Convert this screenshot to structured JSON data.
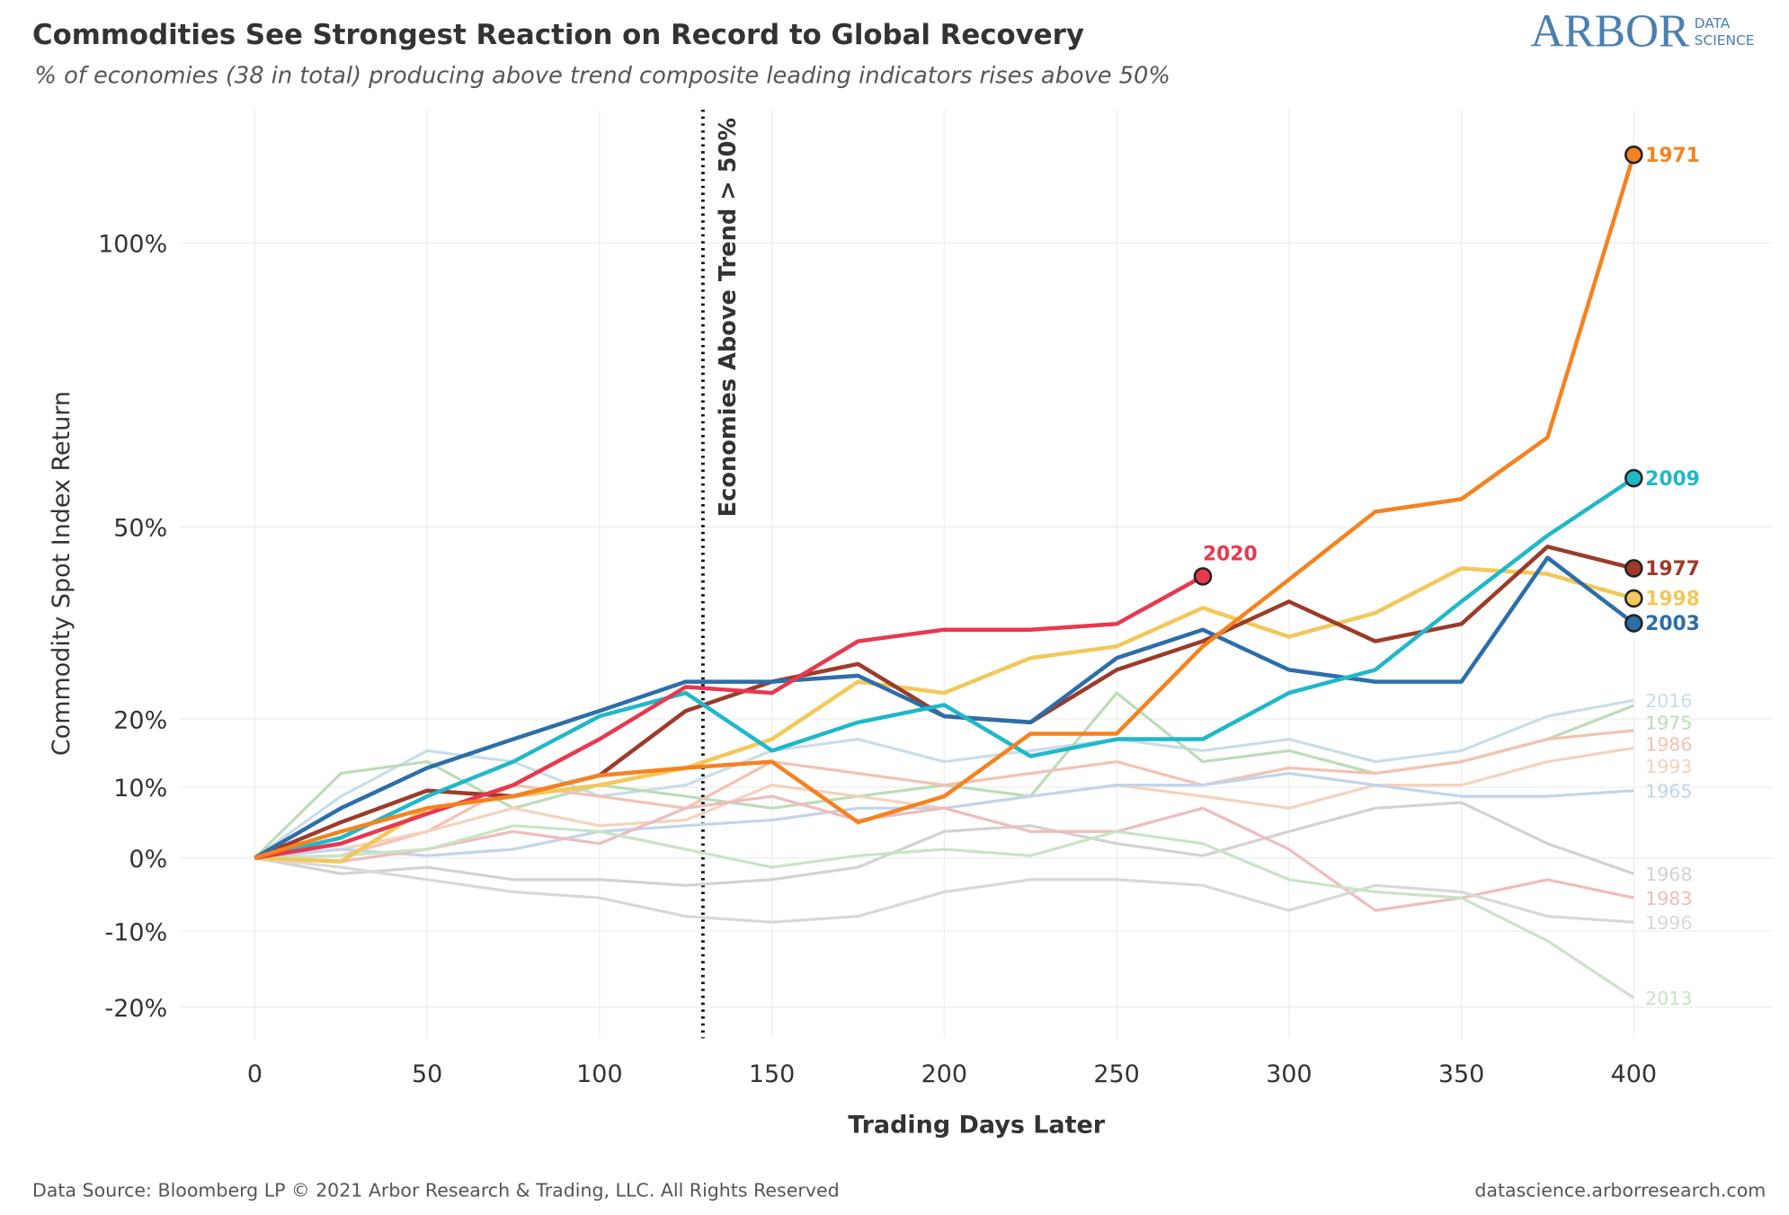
{
  "chart_data": {
    "type": "line",
    "title": "Commodities See Strongest Reaction on Record to Global Recovery",
    "subtitle": "% of economies (38 in total) producing above trend composite leading indicators rises above 50%",
    "logo": {
      "name": "ARBOR",
      "tag": [
        "DATA",
        "SCIENCE"
      ]
    },
    "x_label": "Trading Days Later",
    "y_label": "Commodity Spot Index Return",
    "source": "Data Source: Bloomberg LP © 2021 Arbor Research & Trading, LLC. All Rights Reserved",
    "website": "datascience.arborresearch.com",
    "annotations": [
      {
        "x": 130,
        "label": "Economies Above Trend > 50%"
      }
    ],
    "x": [
      0,
      25,
      50,
      75,
      100,
      125,
      150,
      175,
      200,
      225,
      250,
      275,
      300,
      325,
      350,
      375,
      400
    ],
    "xlim": [
      -22,
      440
    ],
    "xticks": [
      0,
      50,
      100,
      150,
      200,
      250,
      300,
      350,
      400
    ],
    "ylim": [
      -24,
      126
    ],
    "yticks": [
      {
        "value": -20,
        "label": "-20%"
      },
      {
        "value": -10,
        "label": "-10%"
      },
      {
        "value": 0,
        "label": "0%"
      },
      {
        "value": 10,
        "label": "10%"
      },
      {
        "value": 20,
        "label": "20%"
      },
      {
        "value": 50,
        "label": "50%"
      },
      {
        "value": 100,
        "label": "100%"
      }
    ],
    "grid": true,
    "series": [
      {
        "name": "2016",
        "color": "#c9dde8",
        "highlight": false,
        "values": [
          0,
          8.7,
          15.3,
          13.7,
          8.7,
          10.3,
          15.3,
          17,
          13.7,
          15.3,
          17,
          15.3,
          17,
          13.7,
          15.3,
          20.4,
          22.8
        ]
      },
      {
        "name": "1975",
        "color": "#bcdcb7",
        "highlight": false,
        "values": [
          0,
          12,
          13.7,
          7,
          10.3,
          8.7,
          7,
          8.7,
          10.3,
          8.7,
          23.9,
          13.7,
          15.3,
          12,
          13.7,
          17,
          22
        ]
      },
      {
        "name": "1986",
        "color": "#f3c2b1",
        "highlight": false,
        "values": [
          0,
          0.3,
          3.7,
          10.3,
          8.7,
          7,
          13.7,
          12,
          10.3,
          12,
          13.7,
          10.3,
          12.8,
          12,
          13.7,
          17,
          18.3
        ]
      },
      {
        "name": "1993",
        "color": "#f5d2bd",
        "highlight": false,
        "values": [
          0,
          1.2,
          3.7,
          7,
          4.5,
          5.3,
          10.3,
          8.7,
          7,
          8.7,
          10.3,
          8.7,
          7,
          10.3,
          10.3,
          13.7,
          15.7
        ]
      },
      {
        "name": "1965",
        "color": "#c3d4ea",
        "highlight": false,
        "values": [
          0,
          1.2,
          0.3,
          1.2,
          3.7,
          4.5,
          5.3,
          7,
          7,
          8.7,
          10.3,
          10.3,
          12,
          10.3,
          8.7,
          8.7,
          9.5
        ]
      },
      {
        "name": "1968",
        "color": "#d2d2d2",
        "highlight": false,
        "values": [
          0,
          -2.2,
          -1.3,
          -3,
          -3,
          -3.8,
          -3,
          -1.3,
          3.7,
          4.5,
          2,
          0.3,
          3.7,
          7,
          7.8,
          2,
          -2.2
        ]
      },
      {
        "name": "1983",
        "color": "#efbcbc",
        "highlight": false,
        "values": [
          0,
          -0.5,
          1.2,
          3.7,
          2,
          7,
          8.7,
          5.3,
          7,
          3.7,
          3.7,
          7,
          1.2,
          -7.2,
          -5.5,
          -3,
          -5.5
        ]
      },
      {
        "name": "1996",
        "color": "#d8d8d8",
        "highlight": false,
        "values": [
          0,
          -1.3,
          -3,
          -4.7,
          -5.5,
          -8,
          -8.8,
          -8,
          -4.7,
          -3,
          -3,
          -3.8,
          -7.2,
          -3.8,
          -4.7,
          -8,
          -8.8
        ]
      },
      {
        "name": "2013",
        "color": "#c8e4c5",
        "highlight": false,
        "values": [
          0,
          0.3,
          1.2,
          4.5,
          3.7,
          1.2,
          -1.3,
          0.3,
          1.2,
          0.3,
          3.7,
          2,
          -3,
          -4.7,
          -5.5,
          -11.3,
          -18.8
        ]
      },
      {
        "name": "1998",
        "color": "#f2c85b",
        "highlight": true,
        "values": [
          0,
          -0.5,
          7,
          8.7,
          10.3,
          12.8,
          17,
          25.6,
          23.9,
          29.2,
          31,
          37,
          32.5,
          36.2,
          43.3,
          42.4,
          38.5
        ]
      },
      {
        "name": "1977",
        "color": "#9c3b2a",
        "highlight": true,
        "values": [
          0,
          5,
          9.5,
          8.7,
          11.7,
          21.2,
          25.6,
          28.3,
          20.4,
          19.5,
          27.4,
          31.8,
          38,
          31.8,
          34.5,
          46.8,
          43.3
        ]
      },
      {
        "name": "2003",
        "color": "#2c6ea8",
        "highlight": true,
        "values": [
          0,
          7,
          12.8,
          17,
          21.2,
          25.6,
          25.6,
          26.5,
          20.4,
          19.5,
          29.2,
          33.6,
          27.4,
          25.6,
          25.6,
          45,
          34.6
        ]
      },
      {
        "name": "2009",
        "color": "#1fb8c9",
        "highlight": true,
        "values": [
          0,
          2.8,
          8.7,
          13.7,
          20.4,
          23.9,
          15.3,
          19.5,
          22.1,
          14.5,
          17,
          17,
          23.9,
          27.4,
          38,
          48.6,
          58.1
        ]
      },
      {
        "name": "2020",
        "color": "#e8384f",
        "highlight": true,
        "values": [
          0,
          2,
          6.2,
          10.3,
          17,
          24.8,
          23.9,
          31.8,
          33.6,
          33.6,
          34.5,
          42,
          null,
          null,
          null,
          null,
          null
        ]
      },
      {
        "name": "1971",
        "color": "#f5821f",
        "highlight": true,
        "values": [
          0,
          3.7,
          7,
          8.7,
          11.7,
          12.8,
          13.7,
          5,
          8.7,
          17.8,
          17.8,
          31,
          41.5,
          52.5,
          54.6,
          65,
          117
        ]
      }
    ]
  }
}
